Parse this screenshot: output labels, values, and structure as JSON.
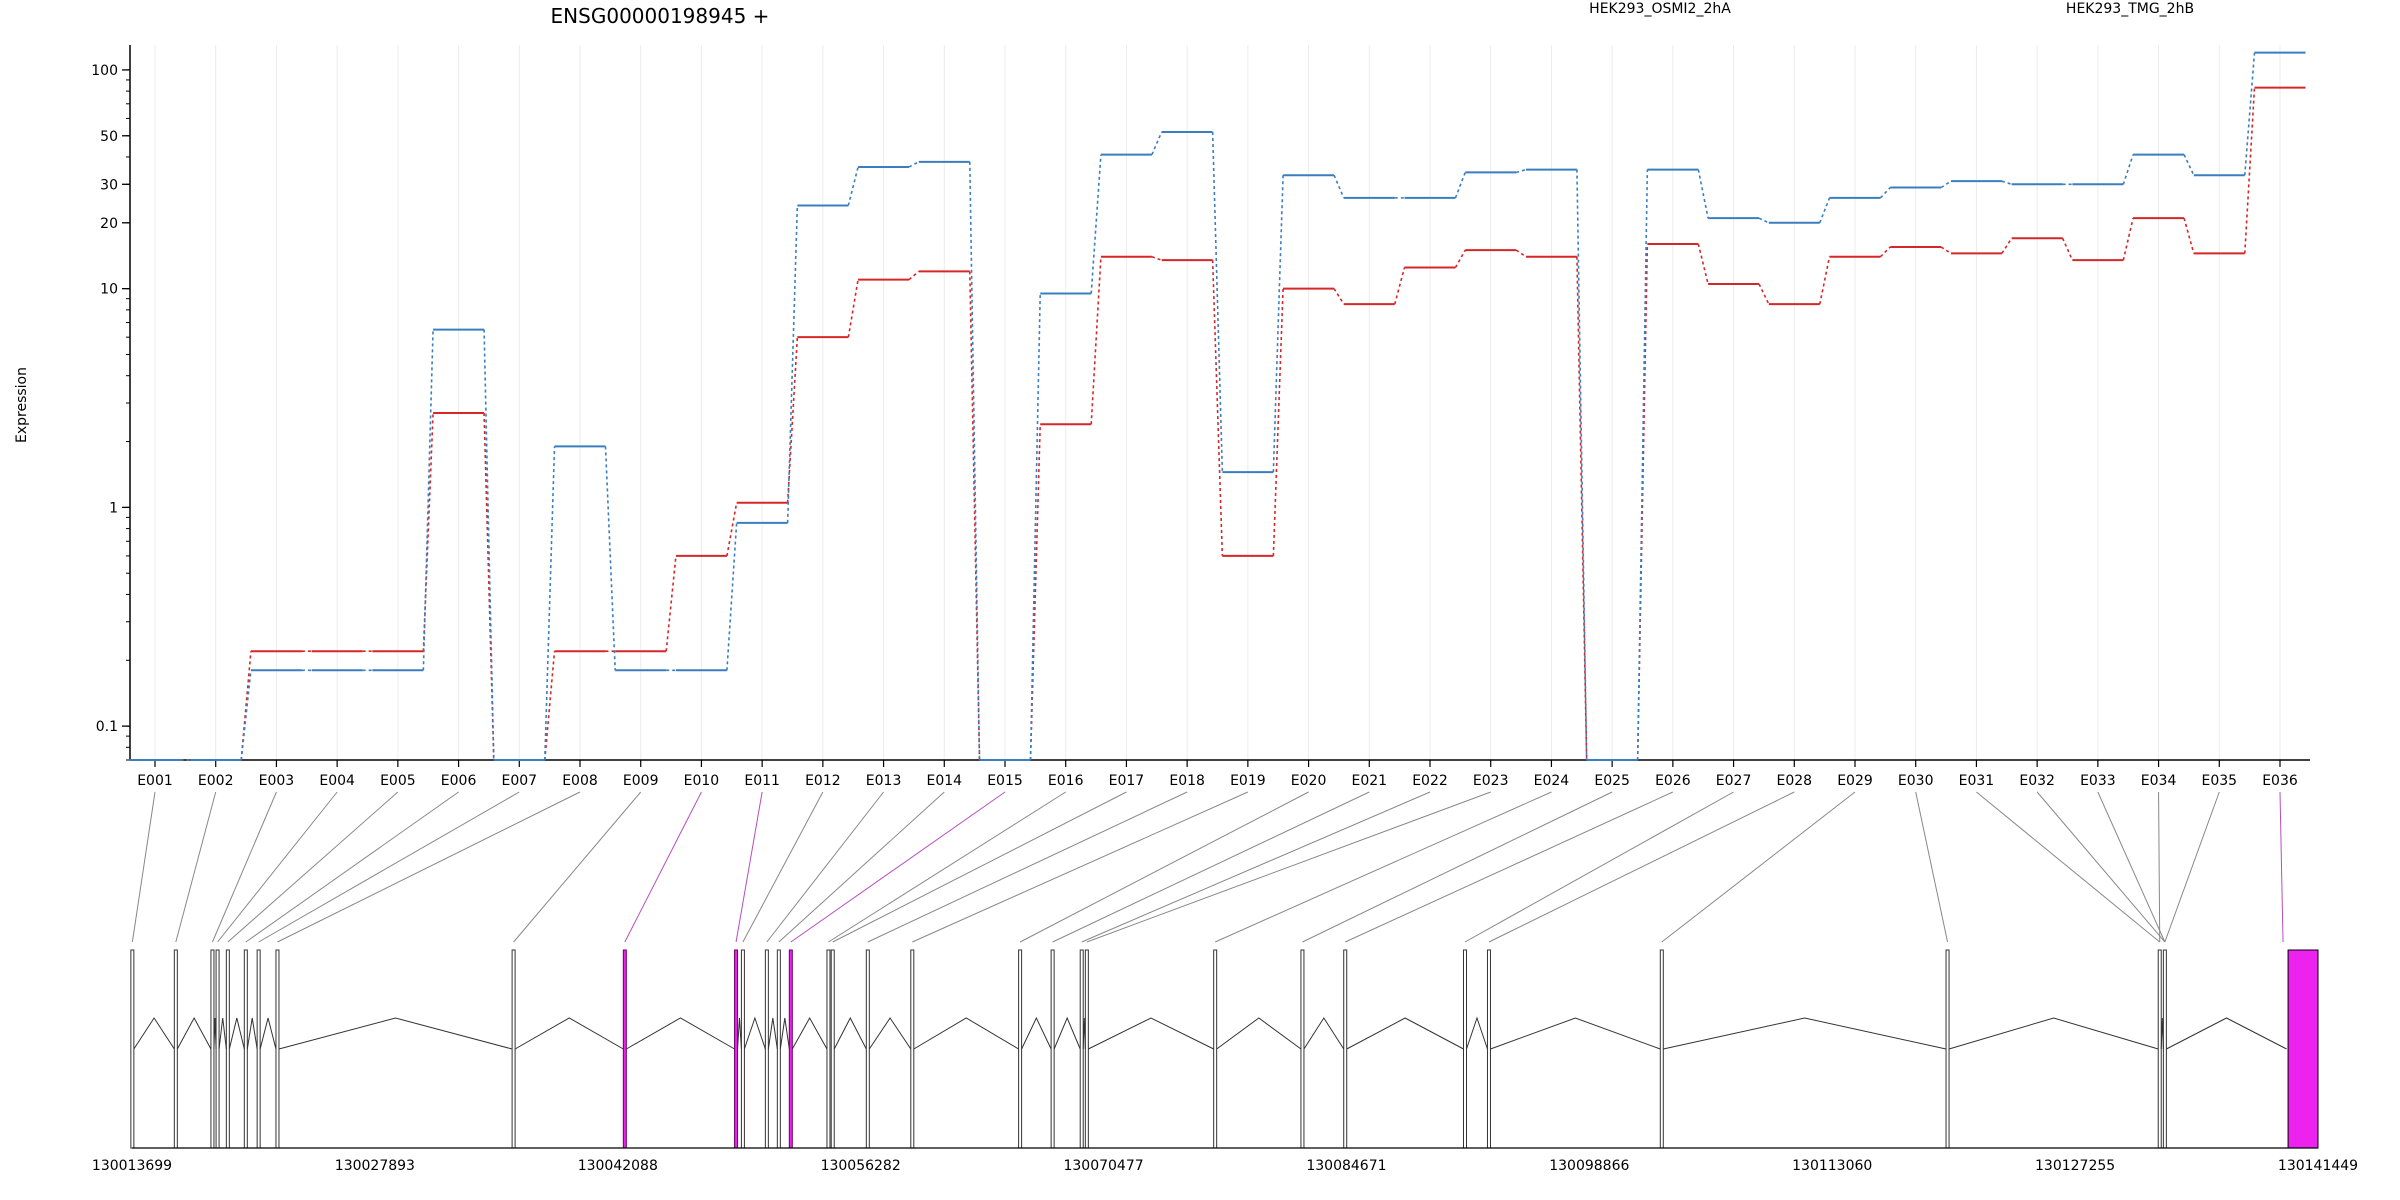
{
  "chart_data": {
    "type": "line",
    "title": "ENSG00000198945 +",
    "ylabel": "Expression",
    "yscale": "log",
    "ylim": [
      0.07,
      130
    ],
    "yticks": [
      0.1,
      1,
      10,
      20,
      30,
      50,
      100
    ],
    "ytick_labels": [
      "0.1",
      "1",
      "10",
      "20",
      "30",
      "50",
      "100"
    ],
    "grid": "vertical, light",
    "legend_placement": "top",
    "categories": [
      "E001",
      "E002",
      "E003",
      "E004",
      "E005",
      "E006",
      "E007",
      "E008",
      "E009",
      "E010",
      "E011",
      "E012",
      "E013",
      "E014",
      "E015",
      "E016",
      "E017",
      "E018",
      "E019",
      "E020",
      "E021",
      "E022",
      "E023",
      "E024",
      "E025",
      "E026",
      "E027",
      "E028",
      "E029",
      "E030",
      "E031",
      "E032",
      "E033",
      "E034",
      "E035",
      "E036"
    ],
    "series": [
      {
        "name": "HEK293_OSMI2_2hA",
        "color": "#d62728",
        "values": [
          0.07,
          0.07,
          0.22,
          0.22,
          0.22,
          2.7,
          0.07,
          0.22,
          0.22,
          0.6,
          1.05,
          6.0,
          11,
          12,
          0.07,
          2.4,
          14,
          13.5,
          0.6,
          10,
          8.5,
          12.5,
          15,
          14,
          0.07,
          16,
          10.5,
          8.5,
          14,
          15.5,
          14.5,
          17,
          13.5,
          21,
          14.5,
          83
        ]
      },
      {
        "name": "HEK293_TMG_2hB",
        "color": "#3a7ebf",
        "values": [
          0.07,
          0.07,
          0.18,
          0.18,
          0.18,
          6.5,
          0.07,
          1.9,
          0.18,
          0.18,
          0.85,
          24,
          36,
          38,
          0.07,
          9.5,
          41,
          52,
          1.45,
          33,
          26,
          26,
          34,
          35,
          0.07,
          35,
          21,
          20,
          26,
          29,
          31,
          30,
          30,
          41,
          33,
          120
        ]
      }
    ],
    "gene_model": {
      "coordinate_labels": [
        "130013699",
        "130027893",
        "130042088",
        "130056282",
        "130070477",
        "130084671",
        "130098866",
        "130113060",
        "130127255",
        "130141449"
      ],
      "coord_min": 130013699,
      "coord_max": 130141449,
      "exon_positions": [
        130013720,
        130016260,
        130018400,
        130018700,
        130019300,
        130020350,
        130021100,
        130022200,
        130036000,
        130042500,
        130049000,
        130049400,
        130050800,
        130051500,
        130052200,
        130054400,
        130054650,
        130056700,
        130059300,
        130065600,
        130067500,
        130069200,
        130069500,
        130077000,
        130082100,
        130084600,
        130091600,
        130093000,
        130103100,
        130119800,
        130132200,
        130132500
      ],
      "highlighted_exons": [
        130042500,
        130049000,
        130052200
      ],
      "highlight_color": "#ee22ee",
      "final_exon_start": 130139700
    }
  }
}
